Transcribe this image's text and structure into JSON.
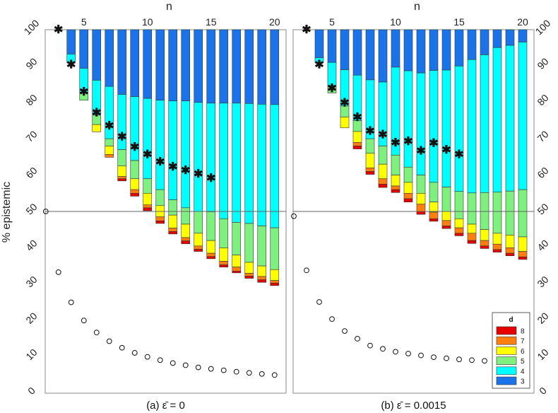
{
  "chart_data": {
    "type": "bar",
    "stacked": true,
    "x_label": "n",
    "y_label": "% epistemic",
    "x_ticks": [
      5,
      10,
      15,
      20
    ],
    "y_ticks": [
      0,
      10,
      20,
      30,
      40,
      50,
      60,
      70,
      80,
      90,
      100
    ],
    "ylim": [
      0,
      100
    ],
    "reference_line_y": 50,
    "legend": {
      "title": "d",
      "items": [
        {
          "label": "8",
          "color": "#e60000"
        },
        {
          "label": "7",
          "color": "#ff7f0e"
        },
        {
          "label": "6",
          "color": "#ffff00"
        },
        {
          "label": "5",
          "color": "#7ef07e"
        },
        {
          "label": "4",
          "color": "#00ffff"
        },
        {
          "label": "3",
          "color": "#1a73e8"
        }
      ]
    },
    "panels": [
      {
        "caption": "(a)  ε̄ = 0",
        "n": [
          3,
          4,
          5,
          6,
          7,
          8,
          9,
          10,
          11,
          12,
          13,
          14,
          15,
          16,
          17,
          18,
          19,
          20
        ],
        "bar_bottoms": {
          "3": [
            100,
            93.3,
            89.4,
            86.1,
            84.4,
            82.2,
            81.6,
            81.1,
            80.6,
            80.4,
            80.4,
            80.0,
            79.8,
            79.8,
            79.8,
            79.7,
            79.5,
            79.4
          ],
          "4": [
            null,
            91,
            82.8,
            76.5,
            70.0,
            67.0,
            64.0,
            59.0,
            56.0,
            53.2,
            51.0,
            50.0,
            49.9,
            48.0,
            47.0,
            46.7,
            46.0,
            45.5
          ],
          "5": [
            null,
            null,
            80.6,
            73.9,
            68.0,
            62.5,
            59.0,
            55.0,
            51.6,
            49.0,
            46.5,
            44.0,
            42.0,
            40.0,
            38.0,
            36.0,
            35.0,
            34.0
          ],
          "6": [
            null,
            null,
            null,
            71.9,
            65.7,
            59.6,
            56.0,
            51.8,
            48.5,
            45.4,
            42.8,
            40.5,
            38.5,
            36.3,
            34.7,
            33.0,
            32.1,
            31.0
          ],
          "7": [
            null,
            null,
            null,
            null,
            64.9,
            59.0,
            55.0,
            51.0,
            47.4,
            44.5,
            41.9,
            39.6,
            37.6,
            35.3,
            33.6,
            32.2,
            31.2,
            30.3
          ],
          "8": [
            null,
            null,
            null,
            null,
            null,
            58.4,
            54.2,
            50.2,
            46.7,
            43.8,
            41.1,
            39.0,
            37.0,
            34.7,
            33.1,
            31.6,
            30.5,
            29.6
          ]
        },
        "star_markers": [
          [
            3,
            100
          ],
          [
            4,
            90.4
          ],
          [
            5,
            82.9
          ],
          [
            6,
            77.1
          ],
          [
            7,
            73.5
          ],
          [
            8,
            70.5
          ],
          [
            9,
            67.7
          ],
          [
            10,
            65.7
          ],
          [
            11,
            63.6
          ],
          [
            12,
            62.3
          ],
          [
            13,
            61.3
          ],
          [
            14,
            60.3
          ],
          [
            15,
            59.1
          ]
        ],
        "circle_markers": [
          [
            2,
            50
          ],
          [
            3,
            33.3
          ],
          [
            4,
            25
          ],
          [
            5,
            20
          ],
          [
            6,
            16.7
          ],
          [
            7,
            14.3
          ],
          [
            8,
            12.5
          ],
          [
            9,
            11.1
          ],
          [
            10,
            10
          ],
          [
            11,
            9.1
          ],
          [
            12,
            8.3
          ],
          [
            13,
            7.7
          ],
          [
            14,
            7.1
          ],
          [
            15,
            6.7
          ],
          [
            16,
            6.3
          ],
          [
            17,
            5.9
          ],
          [
            18,
            5.6
          ],
          [
            19,
            5.3
          ],
          [
            20,
            5.0
          ]
        ]
      },
      {
        "caption": "(b)  ε̄ = 0.0015",
        "n": [
          3,
          4,
          5,
          6,
          7,
          8,
          9,
          10,
          11,
          12,
          13,
          14,
          15,
          16,
          17,
          18,
          19,
          20
        ],
        "bar_bottoms": {
          "3": [
            100,
            92.3,
            91.0,
            89.0,
            87.5,
            86.2,
            85.6,
            89.7,
            88.7,
            88.1,
            88.8,
            88.9,
            90.0,
            91.8,
            93.1,
            95.1,
            95.7,
            96.6
          ],
          "4": [
            null,
            91,
            84.6,
            79.0,
            75.0,
            70.0,
            68.0,
            65.5,
            62.2,
            60.0,
            58.0,
            56.7,
            55.5,
            55.1,
            55.2,
            55.3,
            55.6,
            56.0
          ],
          "5": [
            null,
            null,
            82.6,
            76.0,
            72.0,
            66.0,
            63.0,
            60.0,
            58.0,
            55.0,
            52.6,
            50.0,
            48.0,
            46.5,
            45.0,
            44.0,
            43.5,
            43.0
          ],
          "6": [
            null,
            null,
            null,
            73.0,
            69.0,
            62.0,
            59.0,
            57.0,
            55.0,
            52.0,
            49.8,
            47.5,
            45.5,
            44.0,
            42.0,
            41.0,
            40.0,
            39.0
          ],
          "7": [
            null,
            null,
            null,
            null,
            68.0,
            61.0,
            57.5,
            56.0,
            53.5,
            50.0,
            48.0,
            46.0,
            44.0,
            42.0,
            40.5,
            39.5,
            38.5,
            37.5
          ],
          "8": [
            null,
            null,
            null,
            null,
            67.2,
            60.2,
            56.6,
            55.2,
            52.6,
            49.2,
            47.3,
            45.3,
            43.3,
            41.2,
            39.8,
            38.8,
            37.8,
            36.8
          ]
        },
        "star_markers": [
          [
            3,
            100
          ],
          [
            4,
            90.4
          ],
          [
            5,
            83.9
          ],
          [
            6,
            79.9
          ],
          [
            7,
            75.9
          ],
          [
            8,
            72.1
          ],
          [
            9,
            71.1
          ],
          [
            10,
            68.9
          ],
          [
            11,
            69.3
          ],
          [
            12,
            66.6
          ],
          [
            13,
            68.8
          ],
          [
            14,
            66.9
          ],
          [
            15,
            65.7
          ]
        ],
        "circle_markers": [
          [
            2,
            48.7
          ],
          [
            3,
            33.8
          ],
          [
            4,
            25.1
          ],
          [
            5,
            20.4
          ],
          [
            6,
            17.1
          ],
          [
            7,
            15.0
          ],
          [
            8,
            13.1
          ],
          [
            9,
            12.2
          ],
          [
            10,
            11.4
          ],
          [
            11,
            10.9
          ],
          [
            12,
            10.4
          ],
          [
            13,
            9.9
          ],
          [
            14,
            9.6
          ],
          [
            15,
            9.3
          ],
          [
            16,
            9.1
          ],
          [
            17,
            8.9
          ],
          [
            18,
            8.7
          ]
        ]
      }
    ]
  }
}
